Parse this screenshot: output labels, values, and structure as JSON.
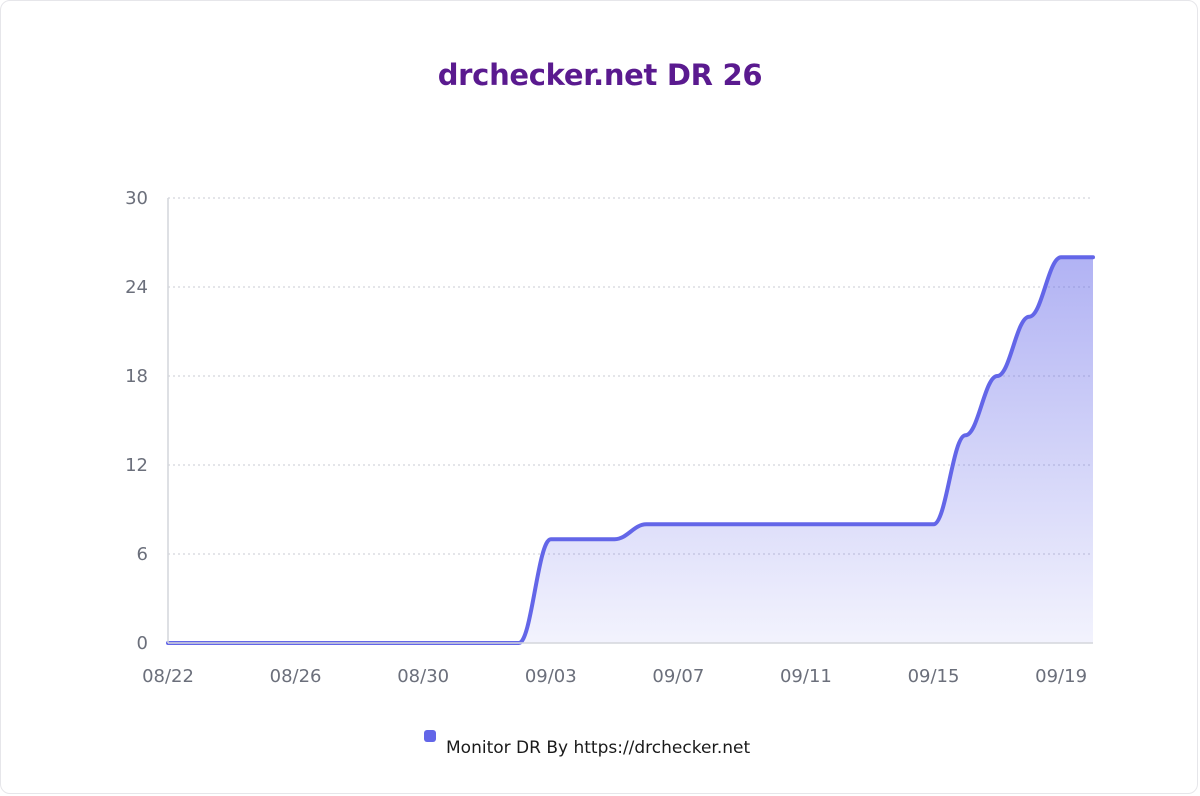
{
  "chart_data": {
    "type": "area",
    "title": "drchecker.net DR 26",
    "xlabel": "",
    "ylabel": "",
    "x_ticks": [
      "08/22",
      "08/26",
      "08/30",
      "09/03",
      "09/07",
      "09/11",
      "09/15",
      "09/19"
    ],
    "y_ticks": [
      0,
      6,
      12,
      18,
      24,
      30
    ],
    "ylim": [
      0,
      30
    ],
    "grid": "horizontal dotted",
    "legend_position": "bottom",
    "series": [
      {
        "name": "Monitor DR By https://drchecker.net",
        "color": "#6366e8",
        "x": [
          "08/22",
          "08/23",
          "08/24",
          "08/25",
          "08/26",
          "08/27",
          "08/28",
          "08/29",
          "08/30",
          "08/31",
          "09/01",
          "09/02",
          "09/03",
          "09/04",
          "09/05",
          "09/06",
          "09/07",
          "09/08",
          "09/09",
          "09/10",
          "09/11",
          "09/12",
          "09/13",
          "09/14",
          "09/15",
          "09/16",
          "09/17",
          "09/18",
          "09/19",
          "09/20"
        ],
        "values": [
          0,
          0,
          0,
          0,
          0,
          0,
          0,
          0,
          0,
          0,
          0,
          0,
          7,
          7,
          7,
          8,
          8,
          8,
          8,
          8,
          8,
          8,
          8,
          8,
          8,
          14,
          18,
          22,
          26,
          26
        ]
      }
    ]
  }
}
